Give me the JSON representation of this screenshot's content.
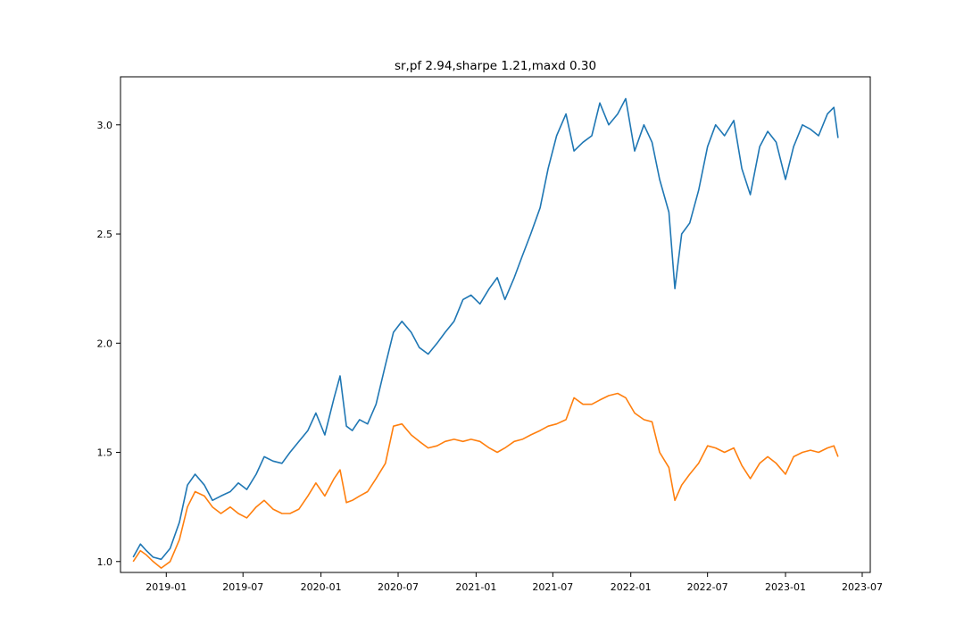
{
  "chart_data": {
    "type": "line",
    "title": "sr,pf 2.94,sharpe 1.21,maxd 0.30",
    "xlabel": "",
    "ylabel": "",
    "x_ticks": [
      "2019-01",
      "2019-07",
      "2020-01",
      "2020-07",
      "2021-01",
      "2021-07",
      "2022-01",
      "2022-07",
      "2023-01",
      "2023-07"
    ],
    "y_ticks": [
      "1.0",
      "1.5",
      "2.0",
      "2.5",
      "3.0"
    ],
    "xlim": [
      "2018-09-15",
      "2023-07-20"
    ],
    "ylim": [
      0.95,
      3.22
    ],
    "grid": false,
    "x": [
      "2018-10-15",
      "2018-11-01",
      "2018-11-15",
      "2018-12-01",
      "2018-12-20",
      "2019-01-10",
      "2019-02-01",
      "2019-02-20",
      "2019-03-10",
      "2019-04-01",
      "2019-04-20",
      "2019-05-10",
      "2019-06-01",
      "2019-06-20",
      "2019-07-10",
      "2019-08-01",
      "2019-08-20",
      "2019-09-10",
      "2019-10-01",
      "2019-10-20",
      "2019-11-10",
      "2019-12-01",
      "2019-12-20",
      "2020-01-10",
      "2020-02-01",
      "2020-02-15",
      "2020-03-01",
      "2020-03-15",
      "2020-04-01",
      "2020-04-20",
      "2020-05-10",
      "2020-06-01",
      "2020-06-20",
      "2020-07-10",
      "2020-08-01",
      "2020-08-20",
      "2020-09-10",
      "2020-10-01",
      "2020-10-20",
      "2020-11-10",
      "2020-12-01",
      "2020-12-20",
      "2021-01-10",
      "2021-02-01",
      "2021-02-20",
      "2021-03-10",
      "2021-04-01",
      "2021-04-20",
      "2021-05-10",
      "2021-06-01",
      "2021-06-20",
      "2021-07-10",
      "2021-08-01",
      "2021-08-20",
      "2021-09-10",
      "2021-10-01",
      "2021-10-20",
      "2021-11-10",
      "2021-12-01",
      "2021-12-20",
      "2022-01-10",
      "2022-02-01",
      "2022-02-20",
      "2022-03-10",
      "2022-04-01",
      "2022-04-15",
      "2022-05-01",
      "2022-05-20",
      "2022-06-10",
      "2022-07-01",
      "2022-07-20",
      "2022-08-10",
      "2022-09-01",
      "2022-09-20",
      "2022-10-10",
      "2022-11-01",
      "2022-11-20",
      "2022-12-10",
      "2023-01-01",
      "2023-01-20",
      "2023-02-10",
      "2023-03-01",
      "2023-03-20",
      "2023-04-10",
      "2023-04-25",
      "2023-05-05"
    ],
    "series": [
      {
        "color": "#1f77b4",
        "values": [
          1.02,
          1.08,
          1.05,
          1.02,
          1.01,
          1.06,
          1.18,
          1.35,
          1.4,
          1.35,
          1.28,
          1.3,
          1.32,
          1.36,
          1.33,
          1.4,
          1.48,
          1.46,
          1.45,
          1.5,
          1.55,
          1.6,
          1.68,
          1.58,
          1.75,
          1.85,
          1.62,
          1.6,
          1.65,
          1.63,
          1.72,
          1.9,
          2.05,
          2.1,
          2.05,
          1.98,
          1.95,
          2.0,
          2.05,
          2.1,
          2.2,
          2.22,
          2.18,
          2.25,
          2.3,
          2.2,
          2.3,
          2.4,
          2.5,
          2.62,
          2.8,
          2.95,
          3.05,
          2.88,
          2.92,
          2.95,
          3.1,
          3.0,
          3.05,
          3.12,
          2.88,
          3.0,
          2.92,
          2.75,
          2.6,
          2.25,
          2.5,
          2.55,
          2.7,
          2.9,
          3.0,
          2.95,
          3.02,
          2.8,
          2.68,
          2.9,
          2.97,
          2.92,
          2.75,
          2.9,
          3.0,
          2.98,
          2.95,
          3.05,
          3.08,
          2.94
        ]
      },
      {
        "color": "#ff7f0e",
        "values": [
          1.0,
          1.05,
          1.03,
          1.0,
          0.97,
          1.0,
          1.1,
          1.25,
          1.32,
          1.3,
          1.25,
          1.22,
          1.25,
          1.22,
          1.2,
          1.25,
          1.28,
          1.24,
          1.22,
          1.22,
          1.24,
          1.3,
          1.36,
          1.3,
          1.38,
          1.42,
          1.27,
          1.28,
          1.3,
          1.32,
          1.38,
          1.45,
          1.62,
          1.63,
          1.58,
          1.55,
          1.52,
          1.53,
          1.55,
          1.56,
          1.55,
          1.56,
          1.55,
          1.52,
          1.5,
          1.52,
          1.55,
          1.56,
          1.58,
          1.6,
          1.62,
          1.63,
          1.65,
          1.75,
          1.72,
          1.72,
          1.74,
          1.76,
          1.77,
          1.75,
          1.68,
          1.65,
          1.64,
          1.5,
          1.43,
          1.28,
          1.35,
          1.4,
          1.45,
          1.53,
          1.52,
          1.5,
          1.52,
          1.44,
          1.38,
          1.45,
          1.48,
          1.45,
          1.4,
          1.48,
          1.5,
          1.51,
          1.5,
          1.52,
          1.53,
          1.48
        ]
      }
    ]
  }
}
